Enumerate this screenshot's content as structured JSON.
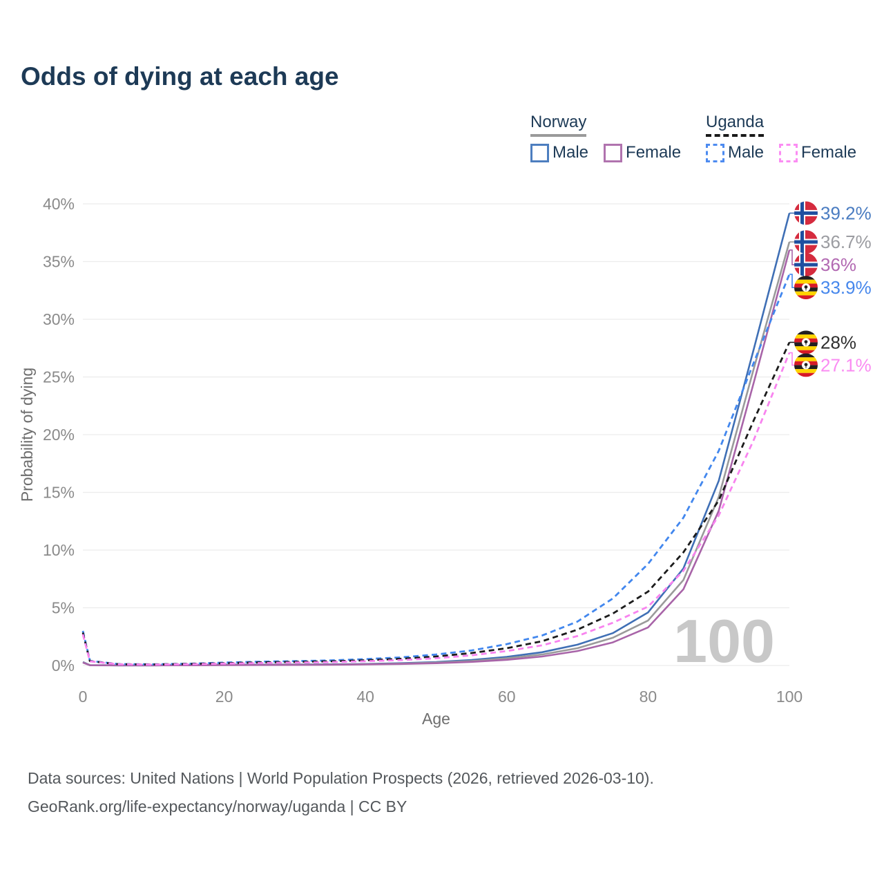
{
  "title": "Odds of dying at each age",
  "legend": {
    "groups": [
      {
        "name": "Norway",
        "line_style": "solid",
        "line_color": "#9a9a9a",
        "items": [
          {
            "label": "Male",
            "color": "#4d7ebf",
            "style": "solid"
          },
          {
            "label": "Female",
            "color": "#b073ae",
            "style": "solid"
          }
        ]
      },
      {
        "name": "Uganda",
        "line_style": "dashed",
        "line_color": "#1a1a1a",
        "items": [
          {
            "label": "Male",
            "color": "#4d8bf0",
            "style": "dashed"
          },
          {
            "label": "Female",
            "color": "#fb8df3",
            "style": "dashed"
          }
        ]
      }
    ]
  },
  "chart_data": {
    "type": "line",
    "title": "Odds of dying at each age",
    "xlabel": "Age",
    "ylabel": "Probability of dying",
    "xlim": [
      0,
      100
    ],
    "ylim": [
      0,
      40
    ],
    "x_ticks": [
      0,
      20,
      40,
      60,
      80,
      100
    ],
    "y_ticks": [
      0,
      5,
      10,
      15,
      20,
      25,
      30,
      35,
      40
    ],
    "y_tick_suffix": "%",
    "grid": "horizontal",
    "legend_position": "top-right",
    "watermark": "100",
    "x": [
      0,
      1,
      5,
      10,
      15,
      20,
      25,
      30,
      35,
      40,
      45,
      50,
      55,
      60,
      65,
      70,
      75,
      80,
      85,
      90,
      95,
      100
    ],
    "series": [
      {
        "name": "Norway Male",
        "country": "Norway",
        "sex": "Male",
        "color": "#3f6fb5",
        "dash": false,
        "flag": "norway",
        "values": [
          0.3,
          0.03,
          0.01,
          0.01,
          0.04,
          0.07,
          0.08,
          0.09,
          0.1,
          0.13,
          0.2,
          0.3,
          0.48,
          0.75,
          1.15,
          1.8,
          2.8,
          4.6,
          8.4,
          16.0,
          27.5,
          39.2
        ],
        "end_label": "39.2%",
        "label_color": "#4a7cc1"
      },
      {
        "name": "Norway Both sexes",
        "country": "Norway",
        "sex": "Both",
        "color": "#9a9a9a",
        "dash": false,
        "flag": "norway",
        "values": [
          0.28,
          0.03,
          0.01,
          0.01,
          0.03,
          0.05,
          0.06,
          0.07,
          0.08,
          0.11,
          0.16,
          0.25,
          0.39,
          0.62,
          0.95,
          1.5,
          2.4,
          3.9,
          7.4,
          14.6,
          25.8,
          36.7
        ],
        "end_label": "36.7%",
        "label_color": "#9b9ca1"
      },
      {
        "name": "Norway Female",
        "country": "Norway",
        "sex": "Female",
        "color": "#a864a8",
        "dash": false,
        "flag": "norway",
        "values": [
          0.25,
          0.02,
          0.01,
          0.01,
          0.02,
          0.03,
          0.04,
          0.05,
          0.06,
          0.09,
          0.13,
          0.2,
          0.31,
          0.49,
          0.78,
          1.25,
          2.0,
          3.3,
          6.6,
          13.4,
          24.6,
          36.0
        ],
        "end_label": "36%",
        "label_color": "#b269b2"
      },
      {
        "name": "Uganda Male",
        "country": "Uganda",
        "sex": "Male",
        "color": "#4287ee",
        "dash": true,
        "flag": "uganda",
        "values": [
          3.0,
          0.4,
          0.12,
          0.1,
          0.15,
          0.25,
          0.33,
          0.38,
          0.44,
          0.55,
          0.7,
          0.95,
          1.3,
          1.85,
          2.6,
          3.8,
          5.8,
          8.8,
          12.8,
          18.6,
          26.3,
          33.9
        ],
        "end_label": "33.9%",
        "label_color": "#4687ec"
      },
      {
        "name": "Uganda Both sexes",
        "country": "Uganda",
        "sex": "Both",
        "color": "#1c1c1c",
        "dash": true,
        "flag": "uganda",
        "values": [
          2.85,
          0.38,
          0.11,
          0.09,
          0.13,
          0.2,
          0.27,
          0.31,
          0.36,
          0.45,
          0.58,
          0.78,
          1.08,
          1.5,
          2.1,
          3.1,
          4.5,
          6.4,
          9.8,
          14.3,
          21.3,
          28.0
        ],
        "end_label": "28%",
        "label_color": "#2e2e2e"
      },
      {
        "name": "Uganda Female",
        "country": "Uganda",
        "sex": "Female",
        "color": "#f883ef",
        "dash": true,
        "flag": "uganda",
        "values": [
          2.7,
          0.36,
          0.1,
          0.08,
          0.11,
          0.16,
          0.21,
          0.25,
          0.29,
          0.37,
          0.47,
          0.63,
          0.88,
          1.25,
          1.75,
          2.55,
          3.7,
          5.1,
          8.2,
          13.0,
          19.6,
          27.1
        ],
        "end_label": "27.1%",
        "label_color": "#fa8cf2"
      }
    ]
  },
  "footer": {
    "line1": "Data sources: United Nations | World Population Prospects (2026, retrieved 2026-03-10).",
    "line2": "GeoRank.org/life-expectancy/norway/uganda | CC BY"
  }
}
